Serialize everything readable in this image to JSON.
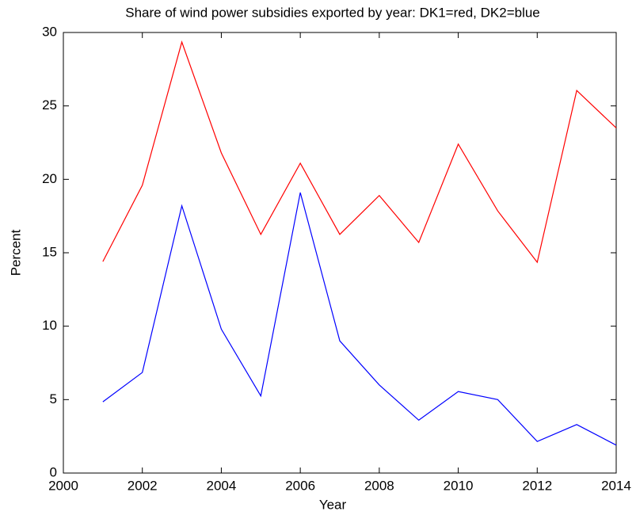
{
  "chart_data": {
    "type": "line",
    "title": "Share of wind power subsidies exported by year: DK1=red, DK2=blue",
    "xlabel": "Year",
    "ylabel": "Percent",
    "x": [
      2001,
      2002,
      2003,
      2004,
      2005,
      2006,
      2007,
      2008,
      2009,
      2010,
      2011,
      2012,
      2013,
      2014
    ],
    "series": [
      {
        "color": "#ff0000",
        "values": [
          14.4,
          19.6,
          29.35,
          21.8,
          16.25,
          21.1,
          16.25,
          18.9,
          15.7,
          22.4,
          17.85,
          14.35,
          26.05,
          23.5
        ]
      },
      {
        "color": "#0000ff",
        "values": [
          4.85,
          6.85,
          18.2,
          9.8,
          5.25,
          19.1,
          9.0,
          6.0,
          3.6,
          5.55,
          5.0,
          2.15,
          3.3,
          1.9
        ]
      }
    ],
    "xlim": [
      2000,
      2014
    ],
    "xticks": [
      2000,
      2002,
      2004,
      2006,
      2008,
      2010,
      2012,
      2014
    ],
    "ylim": [
      0,
      30
    ],
    "yticks": [
      0,
      5,
      10,
      15,
      20,
      25,
      30
    ],
    "grid": false
  }
}
